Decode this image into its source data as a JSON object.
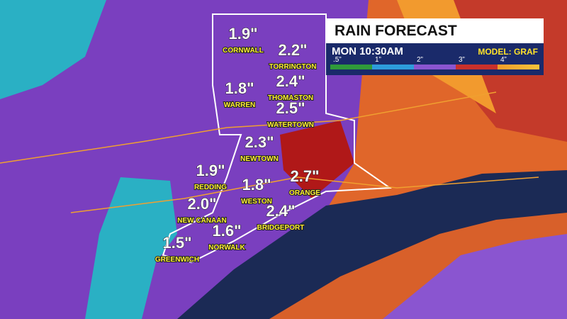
{
  "header": {
    "title": "RAIN FORECAST",
    "time": "MON 10:30AM",
    "model": "MODEL: GRAF"
  },
  "legend": {
    "labels": [
      ".5”",
      "1”",
      "2”",
      "3”",
      "4”"
    ]
  },
  "towns": [
    {
      "name": "CORNWALL",
      "amount": "1.9\""
    },
    {
      "name": "TORRINGTON",
      "amount": "2.2\""
    },
    {
      "name": "WARREN",
      "amount": "1.8\""
    },
    {
      "name": "THOMASTON",
      "amount": "2.4\""
    },
    {
      "name": "WATERTOWN",
      "amount": "2.5\""
    },
    {
      "name": "NEWTOWN",
      "amount": "2.3\""
    },
    {
      "name": "REDDING",
      "amount": "1.9\""
    },
    {
      "name": "WESTON",
      "amount": "1.8\""
    },
    {
      "name": "ORANGE",
      "amount": "2.7\""
    },
    {
      "name": "NEW CANAAN",
      "amount": "2.0\""
    },
    {
      "name": "BRIDGEPORT",
      "amount": "2.4\""
    },
    {
      "name": "NORWALK",
      "amount": "1.6\""
    },
    {
      "name": "GREENWICH",
      "amount": "1.5\""
    }
  ]
}
